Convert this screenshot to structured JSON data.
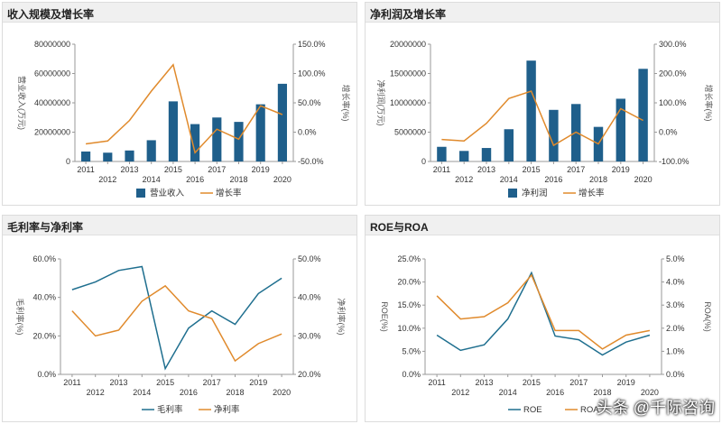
{
  "brand": "头条 @千际咨询",
  "colors": {
    "bar": "#1f5f8b",
    "line_blue": "#1f6f8f",
    "line_orange": "#e08a2c",
    "axis": "#999999"
  },
  "panels": [
    {
      "title": "收入规模及增长率",
      "chart_data": {
        "type": "bar+line",
        "categories": [
          "2011",
          "2012",
          "2013",
          "2014",
          "2015",
          "2016",
          "2017",
          "2018",
          "2019",
          "2020"
        ],
        "series": [
          {
            "name": "营业收入",
            "kind": "bar",
            "axis": "left",
            "values": [
              6800000,
              6000000,
              7500000,
              14500000,
              41000000,
              25500000,
              30000000,
              27000000,
              39000000,
              53000000
            ]
          },
          {
            "name": "增长率",
            "kind": "line",
            "axis": "right",
            "values": [
              -20,
              -15,
              20,
              70,
              115,
              -35,
              5,
              -12,
              45,
              30
            ]
          }
        ],
        "ylabel": "营业收入(万元)",
        "y2label": "增长率(%)",
        "ylim": [
          0,
          80000000
        ],
        "yticks": [
          "0",
          "20000000",
          "40000000",
          "60000000",
          "80000000"
        ],
        "y2lim": [
          -50,
          150
        ],
        "y2ticks": [
          "-50.0%",
          "0.0%",
          "50.0%",
          "100.0%",
          "150.0%"
        ]
      }
    },
    {
      "title": "净利润及增长率",
      "chart_data": {
        "type": "bar+line",
        "categories": [
          "2011",
          "2012",
          "2013",
          "2014",
          "2015",
          "2016",
          "2017",
          "2018",
          "2019",
          "2020"
        ],
        "series": [
          {
            "name": "净利润",
            "kind": "bar",
            "axis": "left",
            "values": [
              2500000,
              1800000,
              2300000,
              5500000,
              17200000,
              8800000,
              9800000,
              5900000,
              10700000,
              15800000
            ]
          },
          {
            "name": "增长率",
            "kind": "line",
            "axis": "right",
            "values": [
              -25,
              -30,
              30,
              115,
              140,
              -45,
              0,
              -40,
              80,
              40
            ]
          }
        ],
        "ylabel": "净利润(万元)",
        "y2label": "增长率(%)",
        "ylim": [
          0,
          20000000
        ],
        "yticks": [
          "0",
          "5000000",
          "10000000",
          "15000000",
          "20000000"
        ],
        "y2lim": [
          -100,
          300
        ],
        "y2ticks": [
          "-100.0%",
          "0.0%",
          "100.0%",
          "200.0%",
          "300.0%"
        ]
      }
    },
    {
      "title": "毛利率与净利率",
      "chart_data": {
        "type": "line",
        "categories": [
          "2011",
          "2012",
          "2013",
          "2014",
          "2015",
          "2016",
          "2017",
          "2018",
          "2019",
          "2020"
        ],
        "series": [
          {
            "name": "毛利率",
            "kind": "line",
            "axis": "left",
            "color": "line_blue",
            "values": [
              44,
              48,
              54,
              56,
              3,
              24,
              33,
              26,
              42,
              50
            ]
          },
          {
            "name": "净利率",
            "kind": "line",
            "axis": "right",
            "color": "line_orange",
            "values": [
              36.5,
              30,
              31.5,
              39,
              43,
              36.5,
              34.5,
              23.5,
              28,
              30.5
            ]
          }
        ],
        "ylabel": "毛利率(%)",
        "y2label": "净利率(%)",
        "ylim": [
          0,
          60
        ],
        "yticks": [
          "0.0%",
          "20.0%",
          "40.0%",
          "60.0%"
        ],
        "y2lim": [
          20,
          50
        ],
        "y2ticks": [
          "20.0%",
          "30.0%",
          "40.0%",
          "50.0%"
        ]
      }
    },
    {
      "title": "ROE与ROA",
      "chart_data": {
        "type": "line",
        "categories": [
          "2011",
          "2012",
          "2013",
          "2014",
          "2015",
          "2016",
          "2017",
          "2018",
          "2019",
          "2020"
        ],
        "series": [
          {
            "name": "ROE",
            "kind": "line",
            "axis": "left",
            "color": "line_blue",
            "values": [
              8.5,
              5.2,
              6.4,
              12,
              22,
              8.3,
              7.5,
              4.2,
              7,
              8.5
            ]
          },
          {
            "name": "ROA",
            "kind": "line",
            "axis": "right",
            "color": "line_orange",
            "values": [
              3.4,
              2.4,
              2.5,
              3.1,
              4.3,
              1.9,
              1.9,
              1.1,
              1.7,
              1.9
            ]
          }
        ],
        "ylabel": "ROE(%)",
        "y2label": "ROA(%)",
        "ylim": [
          0,
          25
        ],
        "yticks": [
          "0.0%",
          "5.0%",
          "10.0%",
          "15.0%",
          "20.0%",
          "25.0%"
        ],
        "y2lim": [
          0,
          5
        ],
        "y2ticks": [
          "0.0%",
          "1.0%",
          "2.0%",
          "3.0%",
          "4.0%",
          "5.0%"
        ]
      }
    }
  ]
}
